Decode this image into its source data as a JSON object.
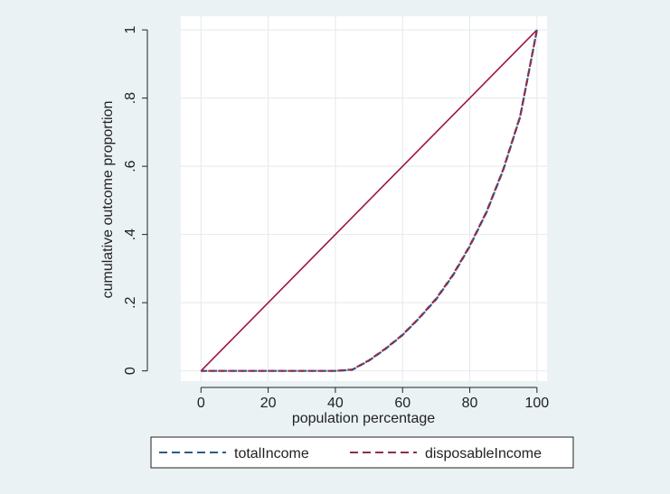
{
  "chart_data": {
    "type": "line",
    "xlabel": "population percentage",
    "ylabel": "cumulative outcome proportion",
    "xlim": [
      -6,
      103
    ],
    "ylim": [
      -0.03,
      1.04
    ],
    "x_ticks": [
      0,
      20,
      40,
      60,
      80,
      100
    ],
    "x_tick_labels": [
      "0",
      "20",
      "40",
      "60",
      "80",
      "100"
    ],
    "y_ticks": [
      0,
      0.2,
      0.4,
      0.6,
      0.8,
      1
    ],
    "y_tick_labels": [
      "0",
      ".2",
      ".4",
      ".6",
      ".8",
      "1"
    ],
    "grid": true,
    "legend_position": "bottom",
    "equality_line": {
      "x": [
        0,
        100
      ],
      "values": [
        0,
        1
      ],
      "color": "#a0143c"
    },
    "series": [
      {
        "name": "totalIncome",
        "style": "dashed",
        "color": "#2d5a8c",
        "x": [
          0,
          5,
          10,
          15,
          20,
          25,
          30,
          35,
          40,
          45,
          50,
          55,
          60,
          65,
          70,
          75,
          80,
          85,
          90,
          95,
          100
        ],
        "values": [
          0,
          0,
          0,
          0,
          0,
          0,
          0,
          0,
          0,
          0.003,
          0.03,
          0.065,
          0.105,
          0.155,
          0.21,
          0.28,
          0.365,
          0.465,
          0.59,
          0.745,
          1.0
        ]
      },
      {
        "name": "disposableIncome",
        "style": "dashed",
        "color": "#8c2f4e",
        "x": [
          0,
          5,
          10,
          15,
          20,
          25,
          30,
          35,
          40,
          45,
          50,
          55,
          60,
          65,
          70,
          75,
          80,
          85,
          90,
          95,
          100
        ],
        "values": [
          0,
          0,
          0,
          0,
          0,
          0,
          0,
          0,
          0,
          0.004,
          0.031,
          0.066,
          0.106,
          0.156,
          0.212,
          0.282,
          0.367,
          0.467,
          0.592,
          0.747,
          1.0
        ]
      }
    ]
  }
}
